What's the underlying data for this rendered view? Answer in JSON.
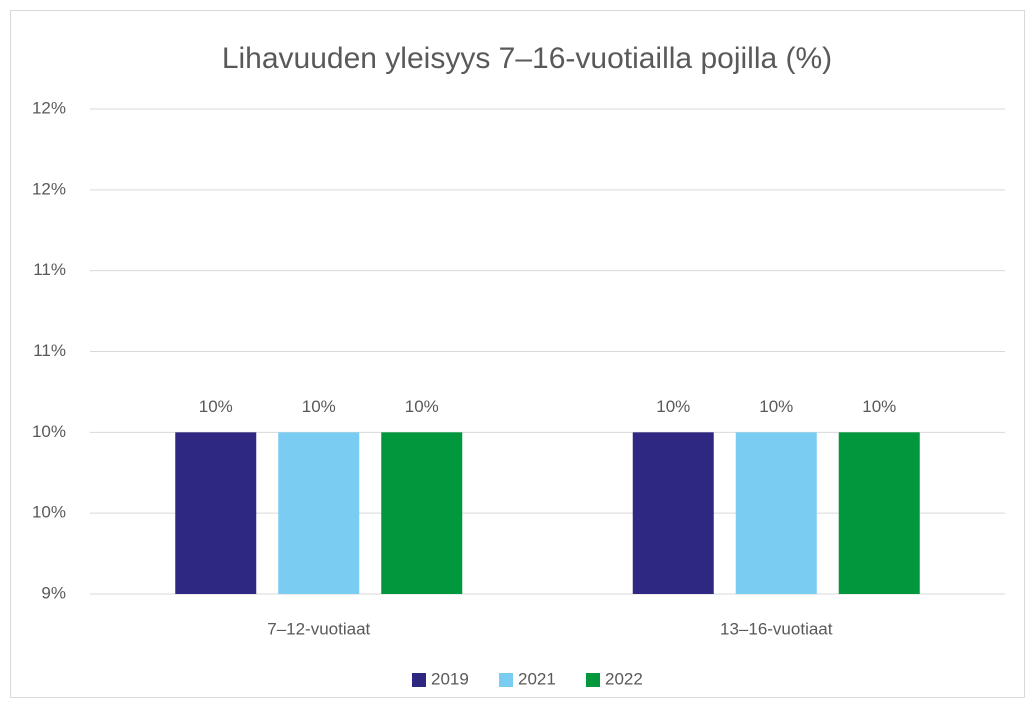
{
  "chart_data": {
    "type": "bar",
    "title": "Lihavuuden yleisyys 7–16-vuotiailla pojilla (%)",
    "categories": [
      "7–12-vuotiaat",
      "13–16-vuotiaat"
    ],
    "series": [
      {
        "name": "2019",
        "color": "#2e2882",
        "values": [
          10,
          10
        ],
        "value_labels": [
          "10%",
          "10%"
        ]
      },
      {
        "name": "2021",
        "color": "#7accf2",
        "values": [
          10,
          10
        ],
        "value_labels": [
          "10%",
          "10%"
        ]
      },
      {
        "name": "2022",
        "color": "#00973d",
        "values": [
          10,
          10
        ],
        "value_labels": [
          "10%",
          "10%"
        ]
      }
    ],
    "ylim": [
      9,
      12
    ],
    "yticks": [
      {
        "value": 9,
        "label": "9%"
      },
      {
        "value": 9.5,
        "label": "10%"
      },
      {
        "value": 10,
        "label": "10%"
      },
      {
        "value": 10.5,
        "label": "11%"
      },
      {
        "value": 11,
        "label": "11%"
      },
      {
        "value": 11.5,
        "label": "12%"
      },
      {
        "value": 12,
        "label": "12%"
      }
    ],
    "grid": true,
    "legend": "bottom"
  }
}
